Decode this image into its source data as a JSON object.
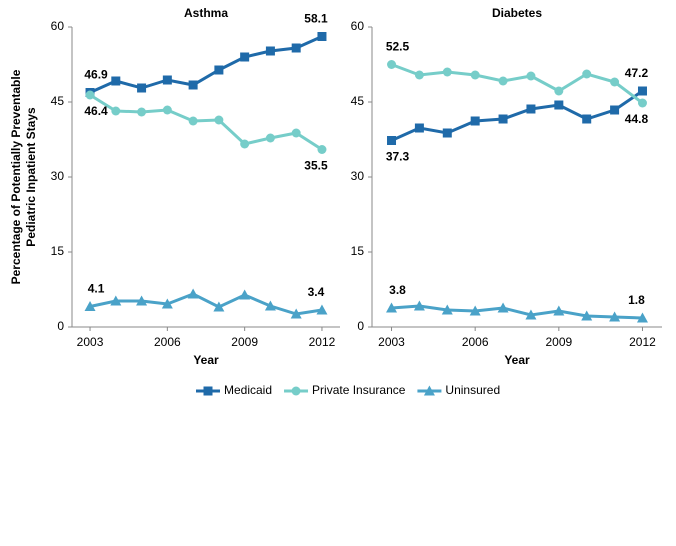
{
  "chart_data": [
    {
      "type": "line",
      "title": "Asthma",
      "xlabel": "Year",
      "ylabel": [
        "Percentage of Potentially Preventable",
        "Pediatric Inpatient Stays"
      ],
      "x": [
        2003,
        2004,
        2005,
        2006,
        2007,
        2008,
        2009,
        2010,
        2011,
        2012
      ],
      "xlim": [
        2002.3,
        2012.7
      ],
      "xticks": [
        2003,
        2006,
        2009,
        2012
      ],
      "ylim": [
        0,
        60
      ],
      "yticks": [
        0,
        15,
        30,
        45,
        60
      ],
      "grid": false,
      "legend": "bottom",
      "series": [
        {
          "name": "Medicaid",
          "color": "#1f6aa9",
          "marker": "square",
          "values": [
            46.9,
            49.2,
            47.8,
            49.4,
            48.4,
            51.4,
            54.0,
            55.2,
            55.8,
            58.1
          ]
        },
        {
          "name": "Private Insurance",
          "color": "#76cdc9",
          "marker": "circle",
          "values": [
            46.4,
            43.2,
            43.0,
            43.4,
            41.2,
            41.4,
            36.6,
            37.8,
            38.8,
            35.5
          ]
        },
        {
          "name": "Uninsured",
          "color": "#4aa2c8",
          "marker": "triangle",
          "values": [
            4.1,
            5.2,
            5.2,
            4.6,
            6.6,
            4.0,
            6.4,
            4.2,
            2.6,
            3.4
          ]
        }
      ]
    },
    {
      "type": "line",
      "title": "Diabetes",
      "xlabel": "Year",
      "x": [
        2003,
        2004,
        2005,
        2006,
        2007,
        2008,
        2009,
        2010,
        2011,
        2012
      ],
      "xlim": [
        2002.3,
        2012.7
      ],
      "xticks": [
        2003,
        2006,
        2009,
        2012
      ],
      "ylim": [
        0,
        60
      ],
      "yticks": [
        0,
        15,
        30,
        45,
        60
      ],
      "grid": false,
      "series": [
        {
          "name": "Medicaid",
          "color": "#1f6aa9",
          "marker": "square",
          "values": [
            37.3,
            39.8,
            38.8,
            41.2,
            41.6,
            43.6,
            44.4,
            41.6,
            43.4,
            47.2
          ]
        },
        {
          "name": "Private Insurance",
          "color": "#76cdc9",
          "marker": "circle",
          "values": [
            52.5,
            50.4,
            51.0,
            50.4,
            49.2,
            50.2,
            47.2,
            50.6,
            49.0,
            44.8
          ]
        },
        {
          "name": "Uninsured",
          "color": "#4aa2c8",
          "marker": "triangle",
          "values": [
            3.8,
            4.2,
            3.4,
            3.2,
            3.8,
            2.4,
            3.2,
            2.2,
            2.0,
            1.8
          ]
        }
      ]
    }
  ]
}
